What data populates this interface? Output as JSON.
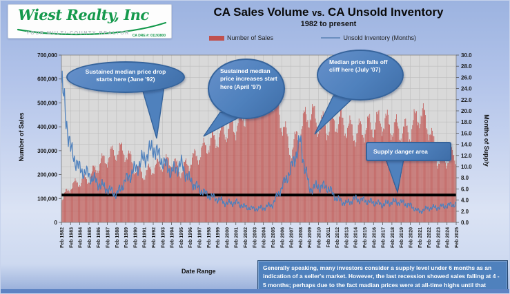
{
  "logo": {
    "brand": "Wiest Realty, Inc",
    "tagline": "YOUR MULTI-COUNTY REALTOR",
    "license": "CA DRE #: 01193800"
  },
  "header": {
    "title_left": "CA Sales Volume",
    "title_vs": "vs.",
    "title_right": "CA Unsold Inventory",
    "subtitle": "1982 to present"
  },
  "legend": [
    {
      "label": "Number of Sales",
      "color": "#c0504d",
      "type": "bar"
    },
    {
      "label": "Unsold Inventory (Months)",
      "color": "#4f81bd",
      "type": "line"
    }
  ],
  "axes": {
    "y_left_label": "Number of Sales",
    "y_right_label": "Months of Supply",
    "x_label": "Date Range",
    "y_left_ticks": [
      "0",
      "100,000",
      "200,000",
      "300,000",
      "400,000",
      "500,000",
      "600,000",
      "700,000"
    ],
    "y_right_ticks": [
      "0.0",
      "2.0",
      "4.0",
      "6.0",
      "8.0",
      "10.0",
      "12.0",
      "14.0",
      "16.0",
      "18.0",
      "20.0",
      "22.0",
      "24.0",
      "26.0",
      "28.0",
      "30.0"
    ],
    "x_ticks": [
      "Feb 1982",
      "Feb 1983",
      "Feb 1984",
      "Feb 1985",
      "Feb 1986",
      "Feb 1987",
      "Feb 1988",
      "Feb 1989",
      "Feb 1990",
      "Feb 1991",
      "Feb 1992",
      "Feb 1993",
      "Feb 1994",
      "Feb 1995",
      "Feb 1996",
      "Feb 1997",
      "Feb 1998",
      "Feb 1999",
      "Feb 2000",
      "Feb 2001",
      "Feb 2002",
      "Feb 2003",
      "Feb 2004",
      "Feb 2005",
      "Feb 2006",
      "Feb 2007",
      "Feb 2008",
      "Feb 2009",
      "Feb 2010",
      "Feb 2011",
      "Feb 2012",
      "Feb 2013",
      "Feb 2014",
      "Feb 2015",
      "Feb 2016",
      "Feb 2017",
      "Feb 2018",
      "Feb 2019",
      "Feb 2020",
      "Feb 2021",
      "Feb 2022",
      "Feb 2023",
      "Feb 2024",
      "Feb 2025"
    ]
  },
  "callouts": [
    {
      "text": "Sustained median price drop starts here (June '92)"
    },
    {
      "text": "Sustained median price increases start here (April '97)"
    },
    {
      "text": "Median price falls off cliff here (July '07)"
    },
    {
      "text": "Supply danger area"
    }
  ],
  "note": {
    "text": "Generally speaking, many investors consider a supply level under 6 months as an indication of a seller's market. However, the last recession showed sales falling at 4 - 5 months; perhaps due to the fact madian prices were at all-time highs until that point."
  },
  "chart_data": {
    "type": "bar",
    "title": "CA Sales Volume vs. CA Unsold Inventory",
    "subtitle": "1982 to present",
    "xlabel": "Date Range",
    "resolution": "monthly, Feb 1982 - Feb 2025 (yearly estimated anchors below)",
    "x_years": [
      1982,
      1983,
      1984,
      1985,
      1986,
      1987,
      1988,
      1989,
      1990,
      1991,
      1992,
      1993,
      1994,
      1995,
      1996,
      1997,
      1998,
      1999,
      2000,
      2001,
      2002,
      2003,
      2004,
      2005,
      2006,
      2007,
      2008,
      2009,
      2010,
      2011,
      2012,
      2013,
      2014,
      2015,
      2016,
      2017,
      2018,
      2019,
      2020,
      2021,
      2022,
      2023,
      2024,
      2025
    ],
    "series": [
      {
        "name": "Number of Sales",
        "type": "bar",
        "axis": "left",
        "color": "#c0504d",
        "ylim": [
          0,
          700000
        ],
        "yearly_values": [
          95000,
          150000,
          170000,
          185000,
          240000,
          270000,
          300000,
          295000,
          230000,
          200000,
          230000,
          245000,
          255000,
          215000,
          255000,
          285000,
          330000,
          355000,
          390000,
          405000,
          465000,
          520000,
          545000,
          540000,
          425000,
          290000,
          390000,
          460000,
          415000,
          400000,
          430000,
          405000,
          370000,
          395000,
          410000,
          425000,
          400000,
          385000,
          380000,
          460000,
          405000,
          260000,
          265000,
          285000
        ]
      },
      {
        "name": "Unsold Inventory (Months)",
        "type": "line",
        "axis": "right",
        "color": "#4f81bd",
        "ylim": [
          0,
          30
        ],
        "yearly_values": [
          25,
          13,
          9.5,
          8.5,
          7,
          6,
          5,
          7.5,
          9.5,
          11.5,
          13.5,
          11,
          9,
          10.5,
          7.5,
          6,
          4.8,
          4.2,
          3.4,
          3.6,
          2.8,
          2.4,
          2.6,
          3.2,
          6.2,
          9.5,
          14.5,
          6,
          6.5,
          6.3,
          4.2,
          3.4,
          4.2,
          3.9,
          3.6,
          3.2,
          3.7,
          3.6,
          3,
          1.9,
          2.6,
          2.7,
          3,
          3.3
        ]
      }
    ],
    "threshold_line": {
      "axis": "right",
      "value": 4.9,
      "color": "#000000"
    },
    "grid": "on",
    "legend_position": "top"
  }
}
